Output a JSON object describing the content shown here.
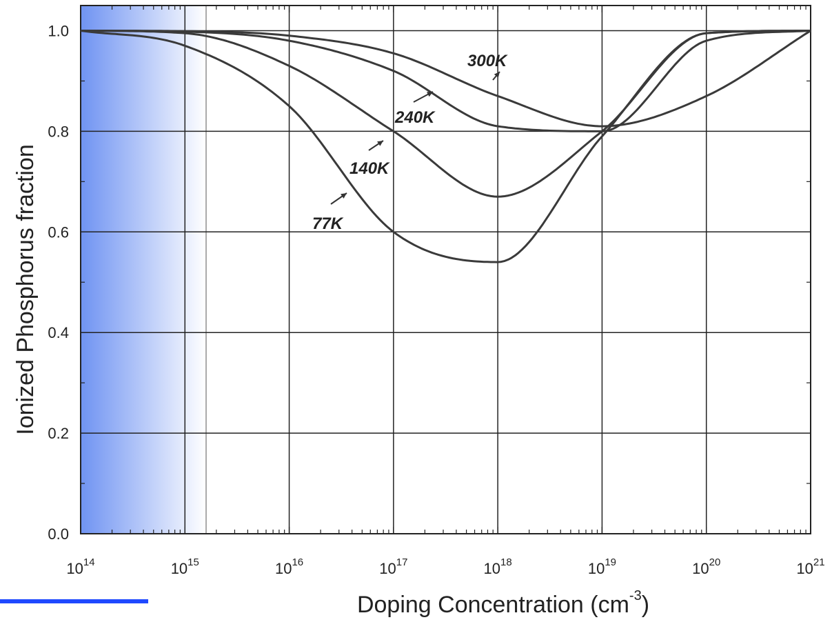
{
  "chart_data": {
    "type": "line",
    "xlabel": "Doping Concentration (cm",
    "xlabel_exp": "-3",
    "xlabel_close": ")",
    "ylabel": "Ionized Phosphorus fraction",
    "x_scale": "log",
    "xlim": [
      100000000000000.0,
      1e+21
    ],
    "ylim": [
      0.0,
      1.05
    ],
    "grid": true,
    "x_ticks": [
      {
        "base": "10",
        "exp": "14"
      },
      {
        "base": "10",
        "exp": "15"
      },
      {
        "base": "10",
        "exp": "16"
      },
      {
        "base": "10",
        "exp": "17"
      },
      {
        "base": "10",
        "exp": "18"
      },
      {
        "base": "10",
        "exp": "19"
      },
      {
        "base": "10",
        "exp": "20"
      },
      {
        "base": "10",
        "exp": "21"
      }
    ],
    "y_ticks": [
      "0.0",
      "0.2",
      "0.4",
      "0.6",
      "0.8",
      "1.0"
    ],
    "series": [
      {
        "name": "300K",
        "x": [
          100000000000000.0,
          1000000000000000.0,
          1e+16,
          1e+17,
          1e+18,
          1e+19,
          1e+20,
          1e+21
        ],
        "y": [
          1.0,
          0.999,
          0.99,
          0.955,
          0.87,
          0.81,
          0.87,
          1.0
        ]
      },
      {
        "name": "240K",
        "x": [
          100000000000000.0,
          1000000000000000.0,
          1e+16,
          1e+17,
          1e+18,
          1e+19,
          1e+20,
          1e+21
        ],
        "y": [
          1.0,
          0.998,
          0.98,
          0.92,
          0.81,
          0.8,
          0.98,
          1.0
        ]
      },
      {
        "name": "140K",
        "x": [
          100000000000000.0,
          1000000000000000.0,
          1e+16,
          1e+17,
          1e+18,
          1e+19,
          1e+20,
          1e+21
        ],
        "y": [
          1.0,
          0.995,
          0.93,
          0.8,
          0.67,
          0.8,
          0.995,
          1.0
        ]
      },
      {
        "name": "77K",
        "x": [
          100000000000000.0,
          1000000000000000.0,
          1e+16,
          1e+17,
          1e+18,
          1e+19,
          1e+20,
          1e+21
        ],
        "y": [
          1.0,
          0.97,
          0.85,
          0.6,
          0.54,
          0.79,
          0.995,
          1.0
        ]
      }
    ],
    "colors": {
      "line": "#3a3a3a",
      "grid": "#222222",
      "highlight": "#6f93f2",
      "accent": "#1f49ff"
    }
  }
}
